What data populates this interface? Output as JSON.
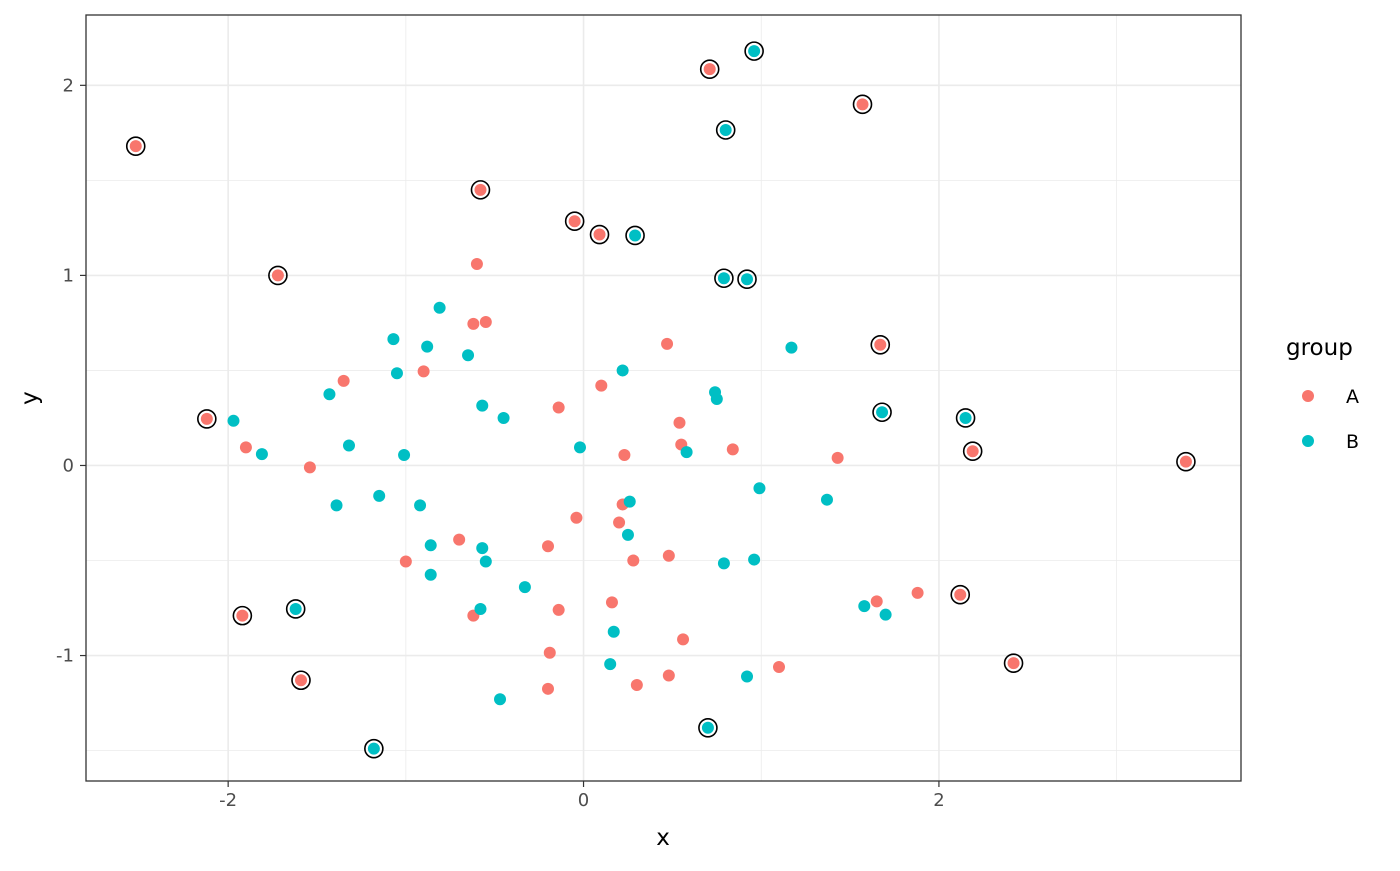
{
  "chart_data": {
    "type": "scatter",
    "title": "",
    "xlabel": "x",
    "ylabel": "y",
    "xlim": [
      -2.8,
      3.7
    ],
    "ylim": [
      -1.66,
      2.37
    ],
    "x_ticks": [
      -2,
      0,
      2
    ],
    "x_tick_labels": [
      "-2",
      "0",
      "2"
    ],
    "y_ticks": [
      -1,
      0,
      1,
      2
    ],
    "y_tick_labels": [
      "-1",
      "0",
      "1",
      "2"
    ],
    "grid": true,
    "legend": {
      "title": "group",
      "position": "right",
      "entries": [
        {
          "label": "A",
          "color": "#F8766D"
        },
        {
          "label": "B",
          "color": "#00BFC4"
        }
      ]
    },
    "colors": {
      "A": "#F8766D",
      "B": "#00BFC4",
      "outlier_ring": "#000000"
    },
    "series": [
      {
        "name": "A",
        "points": [
          {
            "x": -2.52,
            "y": 1.68,
            "circled": true
          },
          {
            "x": -1.72,
            "y": 1.0,
            "circled": true
          },
          {
            "x": -2.12,
            "y": 0.245,
            "circled": true
          },
          {
            "x": -1.92,
            "y": -0.79,
            "circled": true
          },
          {
            "x": -1.59,
            "y": -1.13,
            "circled": true
          },
          {
            "x": -0.58,
            "y": 1.45,
            "circled": true
          },
          {
            "x": -0.05,
            "y": 1.285,
            "circled": true
          },
          {
            "x": 0.09,
            "y": 1.215,
            "circled": true
          },
          {
            "x": 0.71,
            "y": 2.085,
            "circled": true
          },
          {
            "x": 1.57,
            "y": 1.9,
            "circled": true
          },
          {
            "x": 1.67,
            "y": 0.635,
            "circled": true
          },
          {
            "x": 2.19,
            "y": 0.075,
            "circled": true
          },
          {
            "x": 3.39,
            "y": 0.02,
            "circled": true
          },
          {
            "x": 2.12,
            "y": -0.68,
            "circled": true
          },
          {
            "x": 2.42,
            "y": -1.04,
            "circled": true
          },
          {
            "x": -1.9,
            "y": 0.095
          },
          {
            "x": -1.54,
            "y": -0.01
          },
          {
            "x": -1.35,
            "y": 0.445
          },
          {
            "x": -0.9,
            "y": 0.495
          },
          {
            "x": -1.0,
            "y": -0.505
          },
          {
            "x": -0.7,
            "y": -0.39
          },
          {
            "x": -0.6,
            "y": 1.06
          },
          {
            "x": -0.62,
            "y": 0.745
          },
          {
            "x": -0.55,
            "y": 0.755
          },
          {
            "x": -0.62,
            "y": -0.79
          },
          {
            "x": -0.14,
            "y": 0.305
          },
          {
            "x": -0.2,
            "y": -0.425
          },
          {
            "x": -0.14,
            "y": -0.76
          },
          {
            "x": -0.19,
            "y": -0.985
          },
          {
            "x": -0.2,
            "y": -1.175
          },
          {
            "x": -0.04,
            "y": -0.275
          },
          {
            "x": 0.1,
            "y": 0.42
          },
          {
            "x": 0.23,
            "y": 0.055
          },
          {
            "x": 0.22,
            "y": -0.205
          },
          {
            "x": 0.2,
            "y": -0.3
          },
          {
            "x": 0.28,
            "y": -0.5
          },
          {
            "x": 0.16,
            "y": -0.72
          },
          {
            "x": 0.3,
            "y": -1.155
          },
          {
            "x": 0.47,
            "y": 0.64
          },
          {
            "x": 0.54,
            "y": 0.225
          },
          {
            "x": 0.55,
            "y": 0.11
          },
          {
            "x": 0.48,
            "y": -0.475
          },
          {
            "x": 0.56,
            "y": -0.915
          },
          {
            "x": 0.48,
            "y": -1.105
          },
          {
            "x": 0.84,
            "y": 0.085
          },
          {
            "x": 1.1,
            "y": -1.06
          },
          {
            "x": 1.43,
            "y": 0.04
          },
          {
            "x": 1.65,
            "y": -0.715
          },
          {
            "x": 1.88,
            "y": -0.67
          }
        ]
      },
      {
        "name": "B",
        "points": [
          {
            "x": -1.62,
            "y": -0.755,
            "circled": true
          },
          {
            "x": -1.18,
            "y": -1.49,
            "circled": true
          },
          {
            "x": 0.29,
            "y": 1.21,
            "circled": true
          },
          {
            "x": 0.8,
            "y": 1.765,
            "circled": true
          },
          {
            "x": 0.96,
            "y": 2.18,
            "circled": true
          },
          {
            "x": 0.79,
            "y": 0.985,
            "circled": true
          },
          {
            "x": 0.92,
            "y": 0.98,
            "circled": true
          },
          {
            "x": 1.68,
            "y": 0.28,
            "circled": true
          },
          {
            "x": 2.15,
            "y": 0.25,
            "circled": true
          },
          {
            "x": 0.7,
            "y": -1.38,
            "circled": true
          },
          {
            "x": -1.97,
            "y": 0.235
          },
          {
            "x": -1.81,
            "y": 0.06
          },
          {
            "x": -1.43,
            "y": 0.375
          },
          {
            "x": -1.32,
            "y": 0.105
          },
          {
            "x": -1.39,
            "y": -0.21
          },
          {
            "x": -1.15,
            "y": -0.16
          },
          {
            "x": -1.07,
            "y": 0.665
          },
          {
            "x": -1.05,
            "y": 0.485
          },
          {
            "x": -1.01,
            "y": 0.055
          },
          {
            "x": -0.92,
            "y": -0.21
          },
          {
            "x": -0.88,
            "y": 0.625
          },
          {
            "x": -0.86,
            "y": -0.42
          },
          {
            "x": -0.86,
            "y": -0.575
          },
          {
            "x": -0.81,
            "y": 0.83
          },
          {
            "x": -0.65,
            "y": 0.58
          },
          {
            "x": -0.57,
            "y": 0.315
          },
          {
            "x": -0.57,
            "y": -0.435
          },
          {
            "x": -0.55,
            "y": -0.505
          },
          {
            "x": -0.58,
            "y": -0.755
          },
          {
            "x": -0.45,
            "y": 0.25
          },
          {
            "x": -0.47,
            "y": -1.23
          },
          {
            "x": -0.33,
            "y": -0.64
          },
          {
            "x": -0.02,
            "y": 0.095
          },
          {
            "x": 0.22,
            "y": 0.5
          },
          {
            "x": 0.26,
            "y": -0.19
          },
          {
            "x": 0.25,
            "y": -0.365
          },
          {
            "x": 0.17,
            "y": -0.875
          },
          {
            "x": 0.15,
            "y": -1.045
          },
          {
            "x": 0.58,
            "y": 0.07
          },
          {
            "x": 0.74,
            "y": 0.385
          },
          {
            "x": 0.75,
            "y": 0.35
          },
          {
            "x": 0.79,
            "y": -0.515
          },
          {
            "x": 0.96,
            "y": -0.495
          },
          {
            "x": 0.92,
            "y": -1.11
          },
          {
            "x": 0.99,
            "y": -0.12
          },
          {
            "x": 1.17,
            "y": 0.62
          },
          {
            "x": 1.37,
            "y": -0.18
          },
          {
            "x": 1.58,
            "y": -0.74
          },
          {
            "x": 1.7,
            "y": -0.785
          }
        ]
      }
    ]
  }
}
